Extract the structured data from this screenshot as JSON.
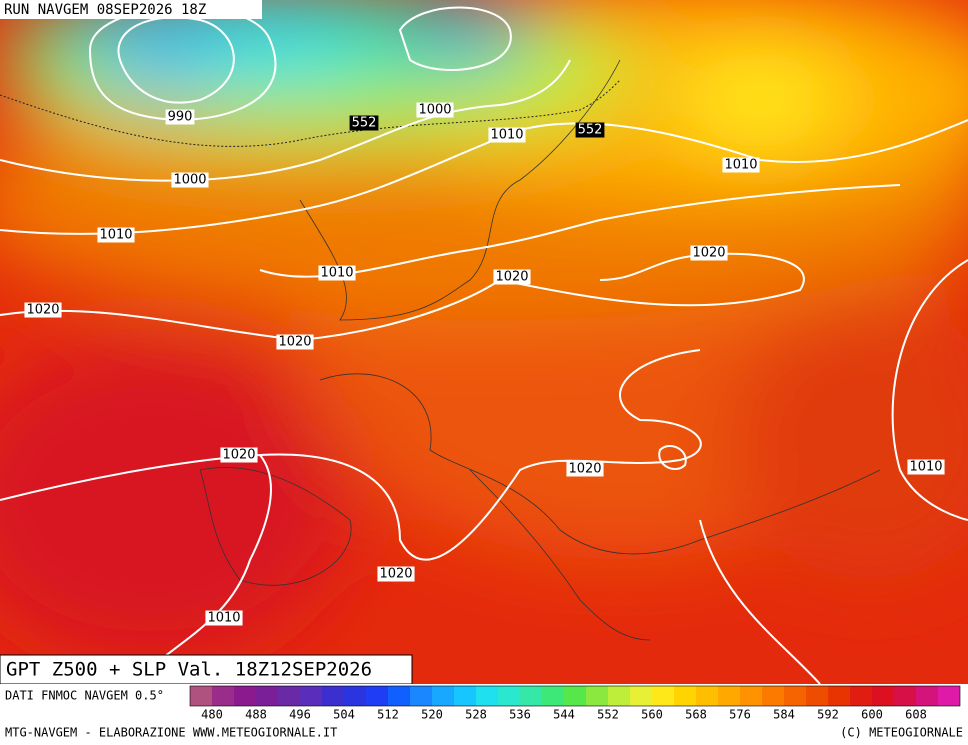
{
  "header": {
    "run": "RUN NAVGEM 08SEP2026 18Z"
  },
  "map": {
    "slp_labels": [
      990,
      1000,
      1010,
      1010,
      1000,
      1010,
      1010,
      1020,
      1020,
      1020,
      1020,
      1020,
      1020,
      1010,
      1020,
      1010
    ],
    "z500_labels": [
      552,
      552
    ]
  },
  "footer": {
    "title": "GPT Z500 + SLP Val. 18Z12SEP2026",
    "source": "DATI FNMOC NAVGEM 0.5°",
    "credit": "MTG-NAVGEM - ELABORAZIONE WWW.METEOGIORNALE.IT",
    "copyright": "(C) METEOGIORNALE"
  },
  "colorbar": {
    "labels": [
      480,
      488,
      496,
      504,
      512,
      520,
      528,
      536,
      544,
      552,
      560,
      568,
      576,
      584,
      592,
      600,
      608
    ],
    "colors": [
      "#b0527f",
      "#9a2c8a",
      "#8a1a8e",
      "#7b1f98",
      "#6a2aa6",
      "#5a2dbb",
      "#3b2fd0",
      "#2a35e0",
      "#1f3df5",
      "#1060ff",
      "#1a86ff",
      "#19a8ff",
      "#17c6ff",
      "#1fe0ee",
      "#2ae8cf",
      "#35e8a8",
      "#3ee878",
      "#56e84a",
      "#8ae83e",
      "#bfee3a",
      "#e8f036",
      "#ffe81a",
      "#ffd400",
      "#ffbf00",
      "#ffa800",
      "#ff9200",
      "#fc7a00",
      "#f56400",
      "#ee4c00",
      "#e83400",
      "#e01d10",
      "#dc1020",
      "#d81048",
      "#d4147a",
      "#e01aa8"
    ]
  }
}
